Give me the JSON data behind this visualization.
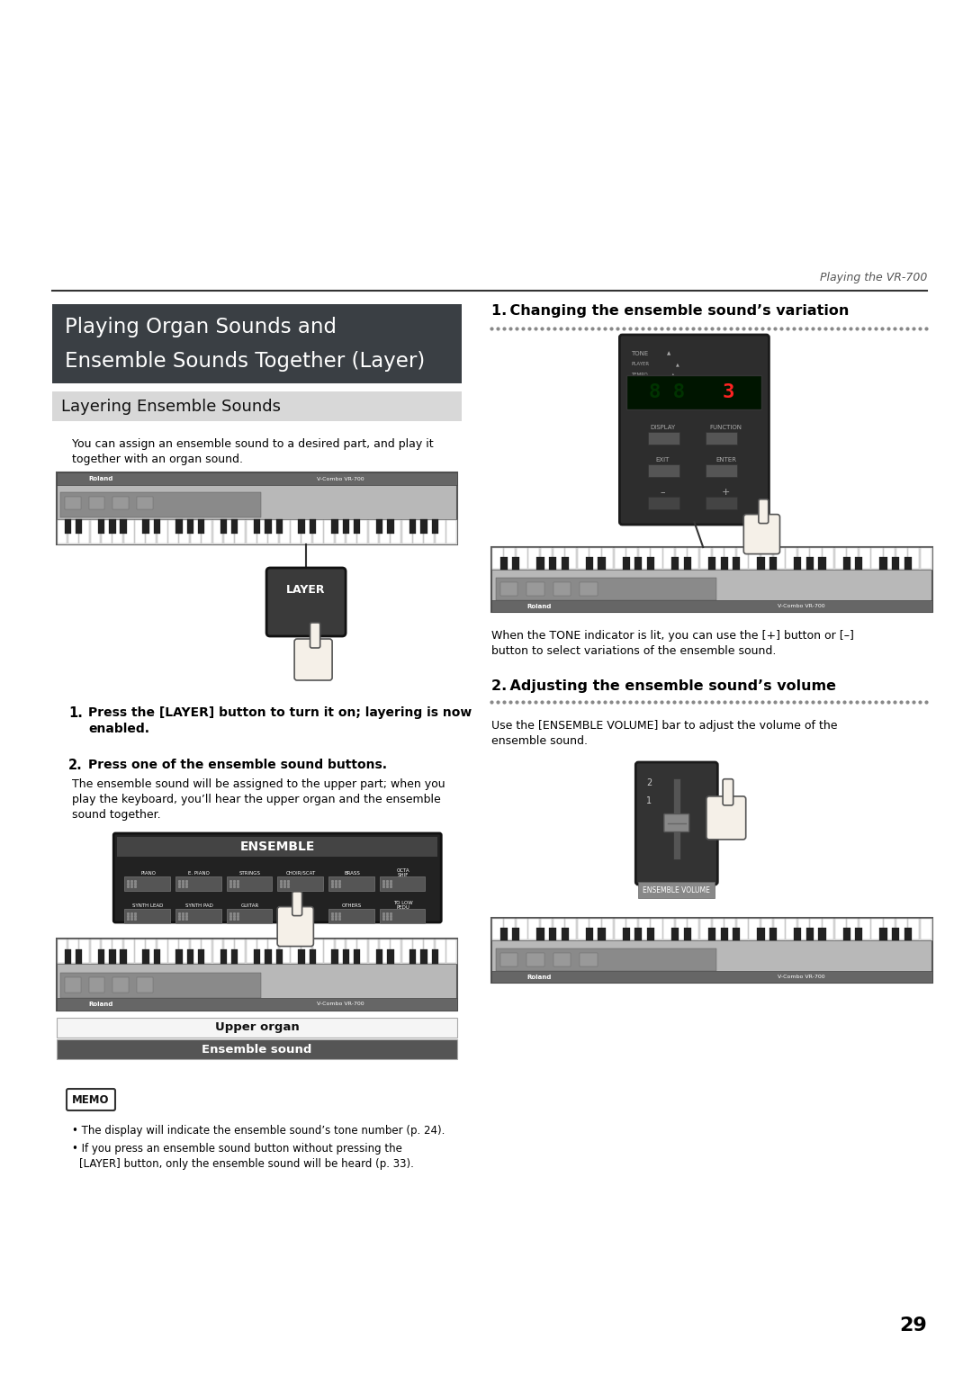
{
  "page_title": "Playing the VR-700",
  "page_number": "29",
  "section_title_line1": "Playing Organ Sounds and",
  "section_title_line2": "Ensemble Sounds Together (Layer)",
  "section_title_bg": "#3a3f44",
  "section_title_color": "#ffffff",
  "subsection_title": "Layering Ensemble Sounds",
  "subsection_bg": "#d8d8d8",
  "body_text_1a": "You can assign an ensemble sound to a desired part, and play it",
  "body_text_1b": "together with an organ sound.",
  "step1_text": "Press the [LAYER] button to turn it on; layering is now",
  "step1_text2": "enabled.",
  "step2_title": "Press one of the ensemble sound buttons.",
  "step2_body1": "The ensemble sound will be assigned to the upper part; when you",
  "step2_body2": "play the keyboard, you’ll hear the upper organ and the ensemble",
  "step2_body3": "sound together.",
  "label_upper_organ": "Upper organ",
  "label_ensemble_sound": "Ensemble sound",
  "right_section1_title": "1. Changing the ensemble sound’s variation",
  "right_section1_body1": "When the TONE indicator is lit, you can use the [+] button or [–]",
  "right_section1_body2": "button to select variations of the ensemble sound.",
  "right_section2_title": "2. Adjusting the ensemble sound’s volume",
  "right_section2_body1": "Use the [ENSEMBLE VOLUME] bar to adjust the volume of the",
  "right_section2_body2": "ensemble sound.",
  "memo_title": "MEMO",
  "memo_bullet1": "The display will indicate the ensemble sound’s tone number (p. 24).",
  "memo_bullet2a": "If you press an ensemble sound button without pressing the",
  "memo_bullet2b": "[LAYER] button, only the ensemble sound will be heard (p. 33).",
  "bg_color": "#ffffff",
  "text_color": "#000000",
  "dot_color": "#888888",
  "line_color": "#333333"
}
